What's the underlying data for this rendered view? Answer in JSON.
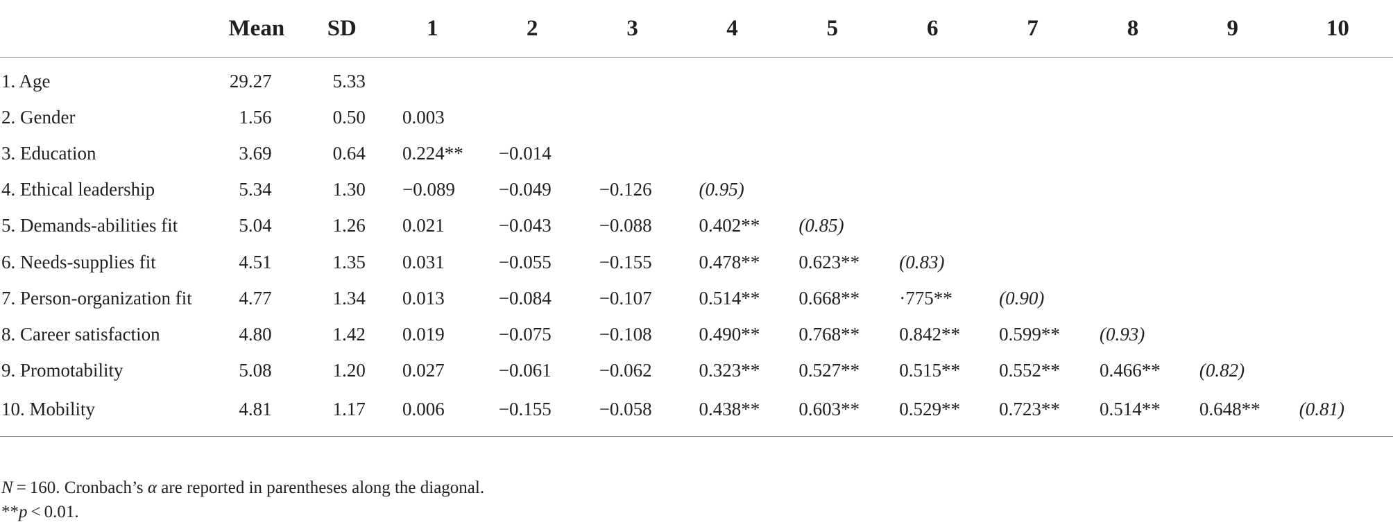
{
  "table": {
    "headers": [
      "",
      "Mean",
      "SD",
      "1",
      "2",
      "3",
      "4",
      "5",
      "6",
      "7",
      "8",
      "9",
      "10"
    ],
    "rows": [
      {
        "label": "1. Age",
        "mean": "29.27",
        "sd": "5.33",
        "cells": [
          "",
          "",
          "",
          "",
          "",
          "",
          "",
          "",
          "",
          ""
        ]
      },
      {
        "label": "2. Gender",
        "mean": "1.56",
        "sd": "0.50",
        "cells": [
          "0.003",
          "",
          "",
          "",
          "",
          "",
          "",
          "",
          "",
          ""
        ]
      },
      {
        "label": "3. Education",
        "mean": "3.69",
        "sd": "0.64",
        "cells": [
          "0.224**",
          "−0.014",
          "",
          "",
          "",
          "",
          "",
          "",
          "",
          ""
        ]
      },
      {
        "label": "4. Ethical leadership",
        "mean": "5.34",
        "sd": "1.30",
        "cells": [
          "−0.089",
          "−0.049",
          "−0.126",
          "(0.95)",
          "",
          "",
          "",
          "",
          "",
          ""
        ]
      },
      {
        "label": "5. Demands-abilities fit",
        "mean": "5.04",
        "sd": "1.26",
        "cells": [
          "0.021",
          "−0.043",
          "−0.088",
          "0.402**",
          "(0.85)",
          "",
          "",
          "",
          "",
          ""
        ]
      },
      {
        "label": "6. Needs-supplies fit",
        "mean": "4.51",
        "sd": "1.35",
        "cells": [
          "0.031",
          "−0.055",
          "−0.155",
          "0.478**",
          "0.623**",
          "(0.83)",
          "",
          "",
          "",
          ""
        ]
      },
      {
        "label": "7. Person-organization fit",
        "mean": "4.77",
        "sd": "1.34",
        "cells": [
          "0.013",
          "−0.084",
          "−0.107",
          "0.514**",
          "0.668**",
          "·775**",
          "(0.90)",
          "",
          "",
          ""
        ]
      },
      {
        "label": "8. Career satisfaction",
        "mean": "4.80",
        "sd": "1.42",
        "cells": [
          "0.019",
          "−0.075",
          "−0.108",
          "0.490**",
          "0.768**",
          "0.842**",
          "0.599**",
          "(0.93)",
          "",
          ""
        ]
      },
      {
        "label": "9. Promotability",
        "mean": "5.08",
        "sd": "1.20",
        "cells": [
          "0.027",
          "−0.061",
          "−0.062",
          "0.323**",
          "0.527**",
          "0.515**",
          "0.552**",
          "0.466**",
          "(0.82)",
          ""
        ]
      },
      {
        "label": "10. Mobility",
        "mean": "4.81",
        "sd": "1.17",
        "cells": [
          "0.006",
          "−0.155",
          "−0.058",
          "0.438**",
          "0.603**",
          "0.529**",
          "0.723**",
          "0.514**",
          "0.648**",
          "(0.81)"
        ]
      }
    ]
  },
  "notes": {
    "n_symbol": "N",
    "n_text": " = 160. Cronbach’s ",
    "alpha_symbol": "α",
    "n_rest": " are reported in parentheses along the diagonal.",
    "sig_stars": "**",
    "sig_p": "p",
    "sig_rest": " < 0.01."
  }
}
